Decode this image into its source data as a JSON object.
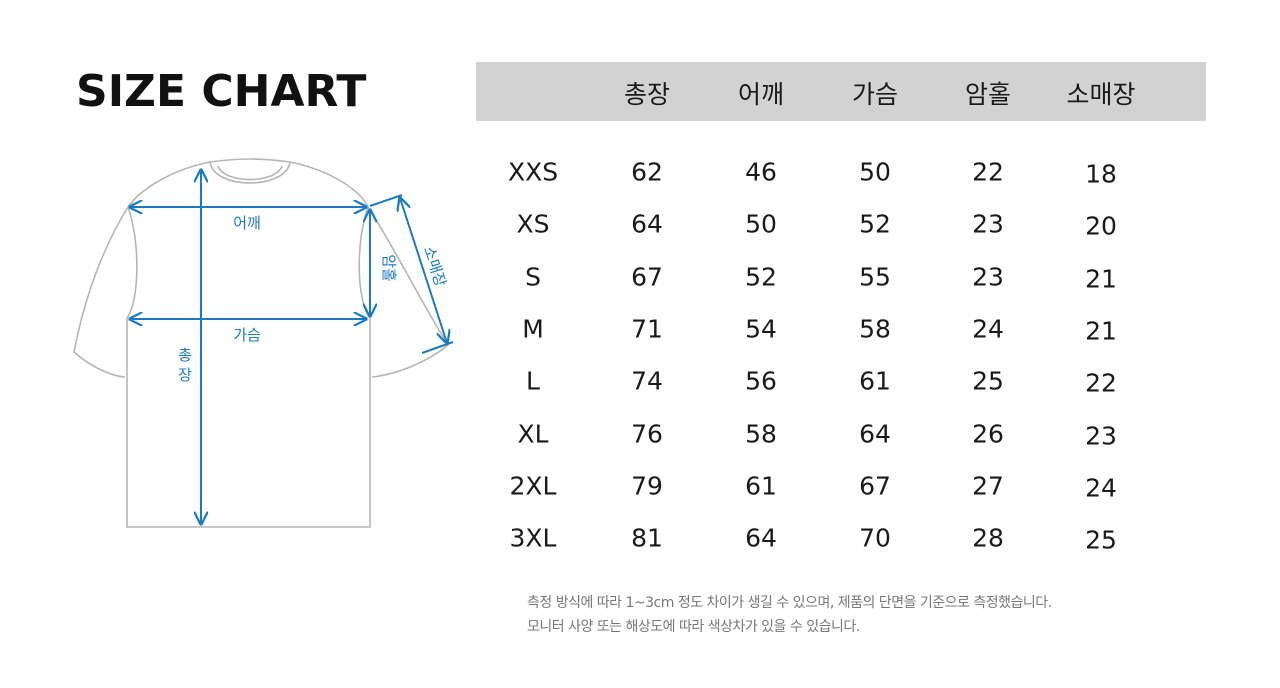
{
  "title": "SIZE CHART",
  "diagram": {
    "labels": {
      "shoulder": "어깨",
      "chest": "가슴",
      "length": "총장",
      "armhole": "암홀",
      "sleeve": "소매장"
    },
    "colors": {
      "arrow": "#1a7bc4",
      "outline": "#b5b5b5"
    }
  },
  "chart_data": {
    "type": "table",
    "title": "SIZE CHART",
    "columns": [
      "",
      "총장",
      "어깨",
      "가슴",
      "암홀",
      "소매장"
    ],
    "rows": [
      [
        "XXS",
        "62",
        "46",
        "50",
        "22",
        "18"
      ],
      [
        "XS",
        "64",
        "50",
        "52",
        "23",
        "20"
      ],
      [
        "S",
        "67",
        "52",
        "55",
        "23",
        "21"
      ],
      [
        "M",
        "71",
        "54",
        "58",
        "24",
        "21"
      ],
      [
        "L",
        "74",
        "56",
        "61",
        "25",
        "22"
      ],
      [
        "XL",
        "76",
        "58",
        "64",
        "26",
        "23"
      ],
      [
        "2XL",
        "79",
        "61",
        "67",
        "27",
        "24"
      ],
      [
        "3XL",
        "81",
        "64",
        "70",
        "28",
        "25"
      ]
    ],
    "header_background": "#d2d2d2"
  },
  "notes": [
    "측정 방식에 따라 1~3cm 정도 차이가 생길 수 있으며, 제품의 단면을 기준으로 측정했습니다.",
    "모니터 사양 또는 해상도에 따라 색상차가 있을 수 있습니다."
  ]
}
